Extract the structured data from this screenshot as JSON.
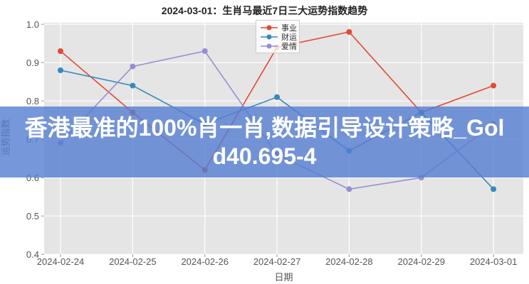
{
  "title": "2024-03-01：生肖马最近7日三大运势指数趋势",
  "chart_data": {
    "type": "line",
    "title": "2024-03-01：生肖马最近7日三大运势指数趋势",
    "categories": [
      "2024-02-24",
      "2024-02-25",
      "2024-02-26",
      "2024-02-27",
      "2024-02-28",
      "2024-02-29",
      "2024-03-01"
    ],
    "series": [
      {
        "name": "事业",
        "color": "#E24A33",
        "values": [
          0.93,
          0.77,
          0.62,
          0.94,
          0.98,
          0.77,
          0.84
        ]
      },
      {
        "name": "财运",
        "color": "#348ABD",
        "values": [
          0.88,
          0.84,
          0.74,
          0.81,
          0.67,
          0.77,
          0.57
        ]
      },
      {
        "name": "爱情",
        "color": "#988ED5",
        "values": [
          0.69,
          0.89,
          0.93,
          0.66,
          0.57,
          0.6,
          0.74
        ]
      }
    ],
    "xlabel": "日期",
    "ylabel": "运势指数",
    "ylim": [
      0.4,
      1.0
    ],
    "yticks": [
      0.4,
      0.5,
      0.6,
      0.7,
      0.8,
      0.9,
      1.0
    ],
    "grid": true,
    "legend_position": "top-center",
    "plot_background": "#E5E5E5",
    "grid_color": "#FFFFFF",
    "tick_label_color": "#555555"
  },
  "overlay_banner": {
    "line1": "香港最准的100%肖一肖,数据引导设计策略_Gol",
    "line2": "d40.695-4",
    "full_text": "香港最准的100%肖一肖,数据引导设计策略_Gold40.695-4",
    "background_rgba": "rgba(85,125,210,0.8)",
    "text_color": "#FFFFFF"
  }
}
